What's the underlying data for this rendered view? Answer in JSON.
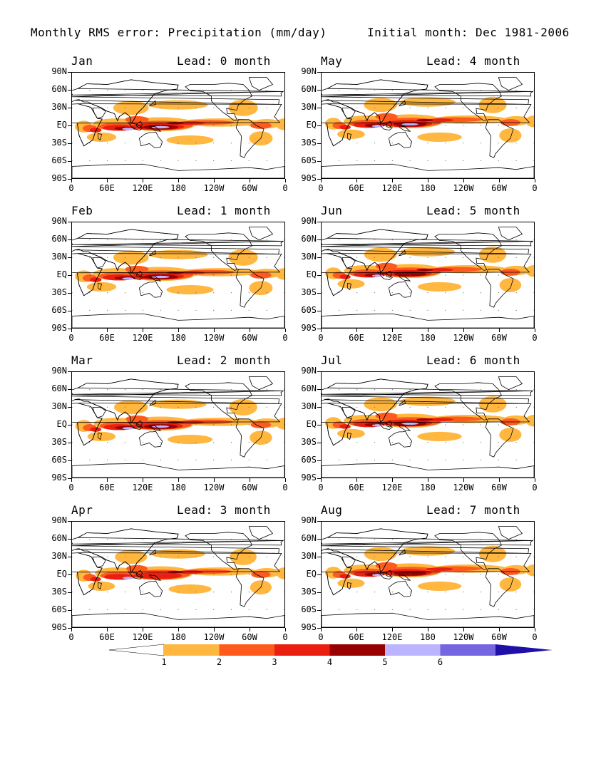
{
  "header": {
    "title": "Monthly RMS error: Precipitation (mm/day)",
    "initial": "Initial month: Dec 1981-2006"
  },
  "y_ticks": [
    "90N",
    "60N",
    "30N",
    "EQ",
    "30S",
    "60S",
    "90S"
  ],
  "x_ticks": [
    "0",
    "60E",
    "120E",
    "180",
    "120W",
    "60W",
    "0"
  ],
  "panels": [
    {
      "month": "Jan",
      "lead": "Lead: 0 month",
      "intensity": 1.0
    },
    {
      "month": "May",
      "lead": "Lead: 4 month",
      "intensity": 0.8
    },
    {
      "month": "Feb",
      "lead": "Lead: 1 month",
      "intensity": 1.0
    },
    {
      "month": "Jun",
      "lead": "Lead: 5 month",
      "intensity": 0.75
    },
    {
      "month": "Mar",
      "lead": "Lead: 2 month",
      "intensity": 0.85
    },
    {
      "month": "Jul",
      "lead": "Lead: 6 month",
      "intensity": 0.8
    },
    {
      "month": "Apr",
      "lead": "Lead: 3 month",
      "intensity": 0.7
    },
    {
      "month": "Aug",
      "lead": "Lead: 7 month",
      "intensity": 0.75
    }
  ],
  "colorbar": {
    "labels": [
      "1",
      "2",
      "3",
      "4",
      "5",
      "6"
    ],
    "colors": [
      "#ffffff",
      "#ffb740",
      "#ff5a1e",
      "#ea1f10",
      "#990000",
      "#bdb4ff",
      "#7565e0",
      "#2010a8"
    ]
  }
}
